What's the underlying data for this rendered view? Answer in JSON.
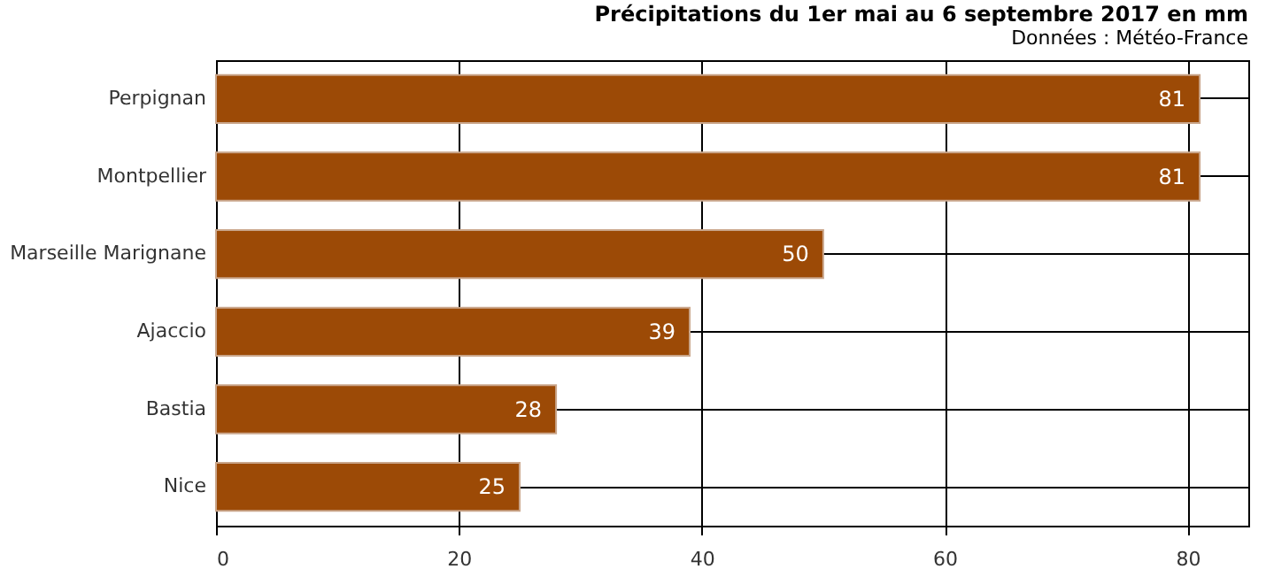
{
  "chart_data": {
    "type": "bar",
    "orientation": "horizontal",
    "title": "Précipitations du 1er mai au 6 septembre 2017 en mm",
    "annotations": [
      "Données : Météo-France"
    ],
    "categories": [
      "Perpignan",
      "Montpellier",
      "Marseille Marignane",
      "Ajaccio",
      "Bastia",
      "Nice"
    ],
    "values": [
      81,
      81,
      50,
      39,
      28,
      25
    ],
    "color": "#9c4a06",
    "xlim": [
      0,
      85
    ],
    "xticks": [
      0,
      20,
      40,
      60,
      80
    ],
    "grid": true,
    "data_labels": true
  }
}
